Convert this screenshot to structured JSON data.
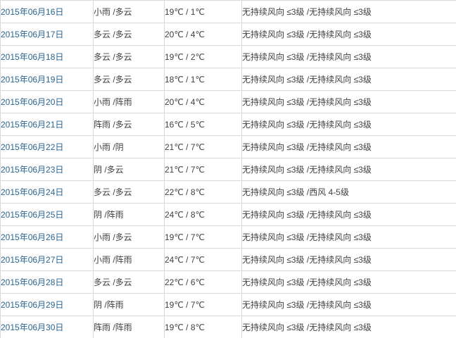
{
  "table": {
    "name": "weather-history-june-2015",
    "rows": [
      {
        "date": "2015年06月16日",
        "weather": "小雨 /多云",
        "temperature": "19℃ / 1℃",
        "wind": "无持续风向 ≤3级 /无持续风向 ≤3级"
      },
      {
        "date": "2015年06月17日",
        "weather": "多云 /多云",
        "temperature": "20℃ / 4℃",
        "wind": "无持续风向 ≤3级 /无持续风向 ≤3级"
      },
      {
        "date": "2015年06月18日",
        "weather": "多云 /多云",
        "temperature": "19℃ / 2℃",
        "wind": "无持续风向 ≤3级 /无持续风向 ≤3级"
      },
      {
        "date": "2015年06月19日",
        "weather": "多云 /多云",
        "temperature": "18℃ / 1℃",
        "wind": "无持续风向 ≤3级 /无持续风向 ≤3级"
      },
      {
        "date": "2015年06月20日",
        "weather": "小雨 /阵雨",
        "temperature": "20℃ / 4℃",
        "wind": "无持续风向 ≤3级 /无持续风向 ≤3级"
      },
      {
        "date": "2015年06月21日",
        "weather": "阵雨 /多云",
        "temperature": "16℃ / 5℃",
        "wind": "无持续风向 ≤3级 /无持续风向 ≤3级"
      },
      {
        "date": "2015年06月22日",
        "weather": "小雨 /阴",
        "temperature": "21℃ / 7℃",
        "wind": "无持续风向 ≤3级 /无持续风向 ≤3级"
      },
      {
        "date": "2015年06月23日",
        "weather": "阴 /多云",
        "temperature": "21℃ / 7℃",
        "wind": "无持续风向 ≤3级 /无持续风向 ≤3级"
      },
      {
        "date": "2015年06月24日",
        "weather": "多云 /多云",
        "temperature": "22℃ / 8℃",
        "wind": "无持续风向 ≤3级 /西风 4-5级"
      },
      {
        "date": "2015年06月25日",
        "weather": "阴 /阵雨",
        "temperature": "24℃ / 8℃",
        "wind": "无持续风向 ≤3级 /无持续风向 ≤3级"
      },
      {
        "date": "2015年06月26日",
        "weather": "小雨 /多云",
        "temperature": "19℃ / 7℃",
        "wind": "无持续风向 ≤3级 /无持续风向 ≤3级"
      },
      {
        "date": "2015年06月27日",
        "weather": "小雨 /阵雨",
        "temperature": "24℃ / 7℃",
        "wind": "无持续风向 ≤3级 /无持续风向 ≤3级"
      },
      {
        "date": "2015年06月28日",
        "weather": "多云 /多云",
        "temperature": "22℃ / 6℃",
        "wind": "无持续风向 ≤3级 /无持续风向 ≤3级"
      },
      {
        "date": "2015年06月29日",
        "weather": "阴 /阵雨",
        "temperature": "19℃ / 7℃",
        "wind": "无持续风向 ≤3级 /无持续风向 ≤3级"
      },
      {
        "date": "2015年06月30日",
        "weather": "阵雨 /阵雨",
        "temperature": "19℃ / 8℃",
        "wind": "无持续风向 ≤3级 /无持续风向 ≤3级"
      }
    ],
    "colors": {
      "date_link": "#29658e",
      "body_text": "#404040",
      "border": "#d9d9d9"
    }
  }
}
